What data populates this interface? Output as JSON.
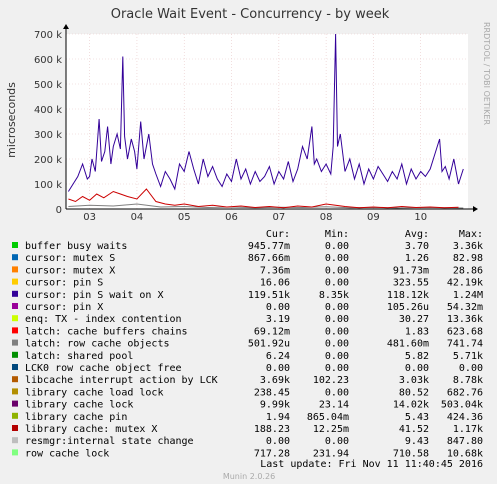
{
  "chart_data": {
    "type": "line",
    "title": "Oracle Wait Event - Concurrency - by week",
    "ylabel": "microseconds",
    "side_label": "RRDTOOL / TOBI OETIKER",
    "ylim": [
      0,
      700000
    ],
    "yticks": [
      {
        "value": 0,
        "label": "0"
      },
      {
        "value": 100000,
        "label": "100 k"
      },
      {
        "value": 200000,
        "label": "200 k"
      },
      {
        "value": 300000,
        "label": "300 k"
      },
      {
        "value": 400000,
        "label": "400 k"
      },
      {
        "value": 500000,
        "label": "500 k"
      },
      {
        "value": 600000,
        "label": "600 k"
      },
      {
        "value": 700000,
        "label": "700 k"
      }
    ],
    "xlim": [
      2.5,
      11.0
    ],
    "xticks": [
      {
        "value": 3,
        "label": "03"
      },
      {
        "value": 4,
        "label": "04"
      },
      {
        "value": 5,
        "label": "05"
      },
      {
        "value": 6,
        "label": "06"
      },
      {
        "value": 7,
        "label": "07"
      },
      {
        "value": 8,
        "label": "08"
      },
      {
        "value": 9,
        "label": "09"
      },
      {
        "value": 10,
        "label": "10"
      }
    ],
    "grid": true,
    "series": [
      {
        "name": "cursor: pin S wait on X",
        "color": "#330099",
        "points": [
          [
            2.55,
            70000
          ],
          [
            2.65,
            100000
          ],
          [
            2.75,
            130000
          ],
          [
            2.85,
            180000
          ],
          [
            2.95,
            120000
          ],
          [
            3.0,
            130000
          ],
          [
            3.05,
            200000
          ],
          [
            3.12,
            150000
          ],
          [
            3.2,
            360000
          ],
          [
            3.25,
            190000
          ],
          [
            3.32,
            230000
          ],
          [
            3.38,
            330000
          ],
          [
            3.45,
            180000
          ],
          [
            3.5,
            250000
          ],
          [
            3.58,
            300000
          ],
          [
            3.65,
            240000
          ],
          [
            3.7,
            610000
          ],
          [
            3.74,
            290000
          ],
          [
            3.8,
            200000
          ],
          [
            3.88,
            280000
          ],
          [
            3.95,
            230000
          ],
          [
            4.0,
            160000
          ],
          [
            4.08,
            350000
          ],
          [
            4.15,
            200000
          ],
          [
            4.25,
            300000
          ],
          [
            4.33,
            180000
          ],
          [
            4.4,
            140000
          ],
          [
            4.5,
            90000
          ],
          [
            4.6,
            150000
          ],
          [
            4.7,
            120000
          ],
          [
            4.8,
            80000
          ],
          [
            4.9,
            180000
          ],
          [
            5.0,
            150000
          ],
          [
            5.1,
            230000
          ],
          [
            5.2,
            160000
          ],
          [
            5.3,
            100000
          ],
          [
            5.4,
            200000
          ],
          [
            5.5,
            130000
          ],
          [
            5.6,
            170000
          ],
          [
            5.7,
            120000
          ],
          [
            5.8,
            90000
          ],
          [
            5.9,
            140000
          ],
          [
            6.0,
            110000
          ],
          [
            6.1,
            200000
          ],
          [
            6.2,
            120000
          ],
          [
            6.3,
            160000
          ],
          [
            6.4,
            100000
          ],
          [
            6.5,
            150000
          ],
          [
            6.6,
            110000
          ],
          [
            6.7,
            130000
          ],
          [
            6.8,
            170000
          ],
          [
            6.9,
            100000
          ],
          [
            7.0,
            150000
          ],
          [
            7.1,
            120000
          ],
          [
            7.2,
            190000
          ],
          [
            7.3,
            110000
          ],
          [
            7.4,
            160000
          ],
          [
            7.5,
            250000
          ],
          [
            7.6,
            200000
          ],
          [
            7.7,
            330000
          ],
          [
            7.75,
            180000
          ],
          [
            7.8,
            200000
          ],
          [
            7.9,
            150000
          ],
          [
            8.0,
            180000
          ],
          [
            8.1,
            140000
          ],
          [
            8.15,
            250000
          ],
          [
            8.2,
            700000
          ],
          [
            8.24,
            250000
          ],
          [
            8.3,
            300000
          ],
          [
            8.4,
            150000
          ],
          [
            8.5,
            200000
          ],
          [
            8.6,
            120000
          ],
          [
            8.7,
            180000
          ],
          [
            8.8,
            100000
          ],
          [
            8.9,
            160000
          ],
          [
            9.0,
            120000
          ],
          [
            9.1,
            170000
          ],
          [
            9.2,
            140000
          ],
          [
            9.3,
            110000
          ],
          [
            9.4,
            150000
          ],
          [
            9.5,
            120000
          ],
          [
            9.6,
            180000
          ],
          [
            9.7,
            100000
          ],
          [
            9.8,
            160000
          ],
          [
            9.9,
            120000
          ],
          [
            10.0,
            150000
          ],
          [
            10.1,
            130000
          ],
          [
            10.2,
            160000
          ],
          [
            10.3,
            220000
          ],
          [
            10.4,
            280000
          ],
          [
            10.45,
            150000
          ],
          [
            10.52,
            170000
          ],
          [
            10.6,
            120000
          ],
          [
            10.7,
            200000
          ],
          [
            10.8,
            100000
          ],
          [
            10.9,
            160000
          ]
        ]
      },
      {
        "name": "library cache lock",
        "color": "#cc0000",
        "points": [
          [
            2.55,
            40000
          ],
          [
            2.7,
            30000
          ],
          [
            2.85,
            50000
          ],
          [
            3.0,
            35000
          ],
          [
            3.15,
            60000
          ],
          [
            3.3,
            45000
          ],
          [
            3.5,
            70000
          ],
          [
            3.65,
            60000
          ],
          [
            3.8,
            50000
          ],
          [
            4.0,
            40000
          ],
          [
            4.2,
            80000
          ],
          [
            4.4,
            30000
          ],
          [
            4.6,
            20000
          ],
          [
            4.8,
            15000
          ],
          [
            5.0,
            20000
          ],
          [
            5.3,
            10000
          ],
          [
            5.6,
            15000
          ],
          [
            5.9,
            8000
          ],
          [
            6.2,
            12000
          ],
          [
            6.5,
            6000
          ],
          [
            6.8,
            10000
          ],
          [
            7.1,
            5000
          ],
          [
            7.4,
            12000
          ],
          [
            7.7,
            8000
          ],
          [
            8.0,
            20000
          ],
          [
            8.2,
            15000
          ],
          [
            8.4,
            10000
          ],
          [
            8.7,
            5000
          ],
          [
            9.0,
            8000
          ],
          [
            9.3,
            5000
          ],
          [
            9.6,
            10000
          ],
          [
            9.9,
            6000
          ],
          [
            10.2,
            8000
          ],
          [
            10.5,
            5000
          ],
          [
            10.8,
            7000
          ]
        ]
      },
      {
        "name": "latch: row cache objects",
        "color": "#808080",
        "points": [
          [
            2.55,
            10000
          ],
          [
            3.0,
            15000
          ],
          [
            3.5,
            12000
          ],
          [
            4.0,
            20000
          ],
          [
            4.5,
            8000
          ],
          [
            5.0,
            10000
          ],
          [
            5.5,
            6000
          ],
          [
            6.0,
            8000
          ],
          [
            6.5,
            5000
          ],
          [
            7.0,
            7000
          ],
          [
            7.5,
            6000
          ],
          [
            8.0,
            9000
          ],
          [
            8.5,
            5000
          ],
          [
            9.0,
            6000
          ],
          [
            9.5,
            4000
          ],
          [
            10.0,
            6000
          ],
          [
            10.5,
            5000
          ],
          [
            10.9,
            4000
          ]
        ]
      }
    ]
  },
  "legend": {
    "headers": [
      "Cur:",
      "Min:",
      "Avg:",
      "Max:"
    ],
    "rows": [
      {
        "name": "buffer busy waits",
        "color": "#00cc00",
        "cur": "945.77m",
        "min": "0.00",
        "avg": "3.70",
        "max": "3.36k"
      },
      {
        "name": "cursor: mutex S",
        "color": "#0066b3",
        "cur": "867.66m",
        "min": "0.00",
        "avg": "1.26",
        "max": "82.98"
      },
      {
        "name": "cursor: mutex X",
        "color": "#ff8000",
        "cur": "7.36m",
        "min": "0.00",
        "avg": "91.73m",
        "max": "28.86"
      },
      {
        "name": "cursor: pin S",
        "color": "#ffcc00",
        "cur": "16.06",
        "min": "0.00",
        "avg": "323.55",
        "max": "42.19k"
      },
      {
        "name": "cursor: pin S wait on X",
        "color": "#330099",
        "cur": "119.51k",
        "min": "8.35k",
        "avg": "118.12k",
        "max": "1.24M"
      },
      {
        "name": "cursor: pin X",
        "color": "#990099",
        "cur": "0.00",
        "min": "0.00",
        "avg": "105.26u",
        "max": "54.32m"
      },
      {
        "name": "enq: TX - index contention",
        "color": "#ccff00",
        "cur": "3.19",
        "min": "0.00",
        "avg": "30.27",
        "max": "13.36k"
      },
      {
        "name": "latch: cache buffers chains",
        "color": "#ff0000",
        "cur": "69.12m",
        "min": "0.00",
        "avg": "1.83",
        "max": "623.68"
      },
      {
        "name": "latch: row cache objects",
        "color": "#808080",
        "cur": "501.92u",
        "min": "0.00",
        "avg": "481.60m",
        "max": "741.74"
      },
      {
        "name": "latch: shared pool",
        "color": "#008f00",
        "cur": "6.24",
        "min": "0.00",
        "avg": "5.82",
        "max": "5.71k"
      },
      {
        "name": "LCK0 row cache object free",
        "color": "#00487d",
        "cur": "0.00",
        "min": "0.00",
        "avg": "0.00",
        "max": "0.00"
      },
      {
        "name": "libcache interrupt action by LCK",
        "color": "#b35a00",
        "cur": "3.69k",
        "min": "102.23",
        "avg": "3.03k",
        "max": "8.78k"
      },
      {
        "name": "library cache load lock",
        "color": "#b38f00",
        "cur": "238.45",
        "min": "0.00",
        "avg": "80.52",
        "max": "682.76"
      },
      {
        "name": "library cache lock",
        "color": "#6b006b",
        "cur": "9.99k",
        "min": "23.14",
        "avg": "14.02k",
        "max": "503.04k"
      },
      {
        "name": "library cache pin",
        "color": "#8fb300",
        "cur": "1.94",
        "min": "865.04m",
        "avg": "5.43",
        "max": "424.36"
      },
      {
        "name": "library cache: mutex X",
        "color": "#b30000",
        "cur": "188.23",
        "min": "12.25m",
        "avg": "41.52",
        "max": "1.17k"
      },
      {
        "name": "resmgr:internal state change",
        "color": "#bebebe",
        "cur": "0.00",
        "min": "0.00",
        "avg": "9.43",
        "max": "847.80"
      },
      {
        "name": "row cache lock",
        "color": "#80ff80",
        "cur": "717.28",
        "min": "231.94",
        "avg": "710.58",
        "max": "10.68k"
      }
    ]
  },
  "footer": {
    "last_update": "Last update:  Fri Nov 11 11:40:45 2016",
    "munin": "Munin 2.0.26"
  }
}
